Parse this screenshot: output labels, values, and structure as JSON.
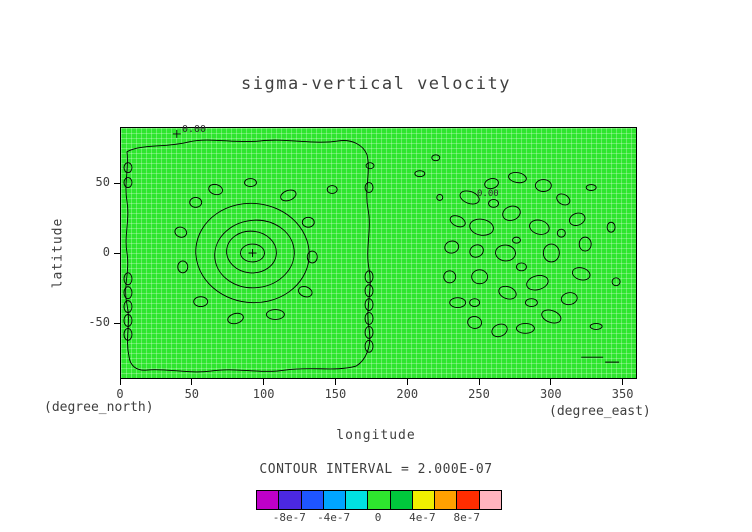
{
  "chart_data": {
    "type": "contour",
    "title": "sigma-vertical velocity",
    "xlabel": "longitude",
    "ylabel": "latitude",
    "x_axis_note": "(degree_east)",
    "y_axis_note": "(degree_north)",
    "xlim": [
      0,
      360
    ],
    "ylim": [
      -90,
      90
    ],
    "x_ticks": [
      0,
      50,
      100,
      150,
      200,
      250,
      300,
      350
    ],
    "x_tick_labels": [
      "0",
      "50",
      "100",
      "150",
      "200",
      "250",
      "300",
      "350"
    ],
    "y_ticks": [
      50,
      0,
      -50
    ],
    "y_tick_labels": [
      "50",
      "0",
      "-50"
    ],
    "grid": true,
    "fill_color": "#2ee62e",
    "contour_interval": 2e-07,
    "contour_interval_label": "CONTOUR INTERVAL = 2.000E-07",
    "contour_level_shown": 0,
    "contour_labels": [
      "0.00",
      "0.00"
    ],
    "colorbar": {
      "colors": [
        "#be00c8",
        "#4b28e1",
        "#1e55ff",
        "#00a5ff",
        "#00e1e1",
        "#2ee62e",
        "#00c83c",
        "#f0f000",
        "#ffa000",
        "#ff2d00",
        "#ffb4be"
      ],
      "tick_labels": [
        "-8e-7",
        "-4e-7",
        "0",
        "4e-7",
        "8e-7"
      ],
      "label_segment_indices": [
        1,
        3,
        5,
        7,
        9
      ]
    }
  }
}
